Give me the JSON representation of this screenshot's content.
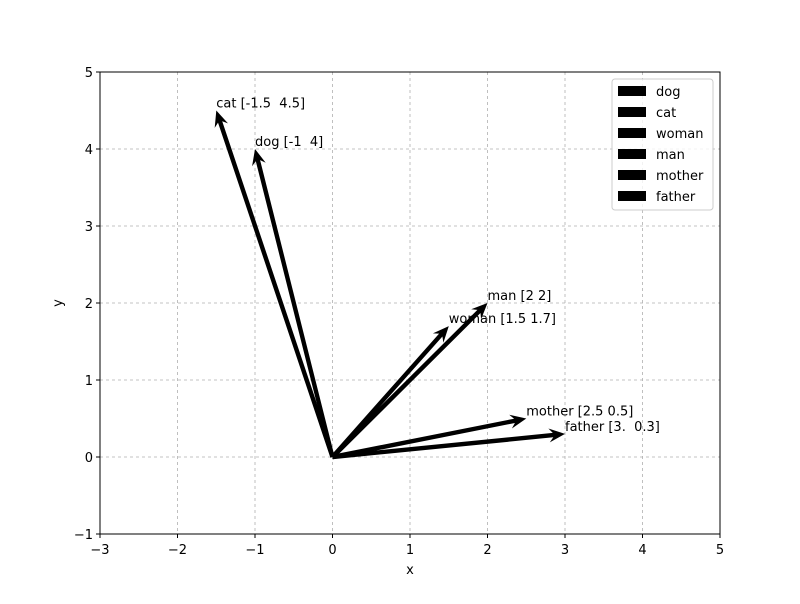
{
  "chart_data": {
    "type": "quiver",
    "xlabel": "x",
    "ylabel": "y",
    "xlim": [
      -3,
      5
    ],
    "ylim": [
      -1,
      5
    ],
    "xticks": [
      {
        "value": -3,
        "label": "−3"
      },
      {
        "value": -2,
        "label": "−2"
      },
      {
        "value": -1,
        "label": "−1"
      },
      0,
      1,
      2,
      3,
      4,
      5
    ],
    "yticks": [
      {
        "value": -1,
        "label": "−1"
      },
      0,
      1,
      2,
      3,
      4,
      5
    ],
    "grid": true,
    "legend": "upper right",
    "series": [
      {
        "name": "dog",
        "color": "#000000",
        "u": -1,
        "v": 4,
        "label": "dog [-1  4]"
      },
      {
        "name": "cat",
        "color": "#000000",
        "u": -1.5,
        "v": 4.5,
        "label": "cat [-1.5  4.5]"
      },
      {
        "name": "woman",
        "color": "#000000",
        "u": 1.5,
        "v": 1.7,
        "label": "woman [1.5 1.7]"
      },
      {
        "name": "man",
        "color": "#000000",
        "u": 2,
        "v": 2,
        "label": "man [2 2]"
      },
      {
        "name": "mother",
        "color": "#000000",
        "u": 2.5,
        "v": 0.5,
        "label": "mother [2.5 0.5]"
      },
      {
        "name": "father",
        "color": "#000000",
        "u": 3,
        "v": 0.3,
        "label": "father [3.  0.3]"
      }
    ]
  }
}
